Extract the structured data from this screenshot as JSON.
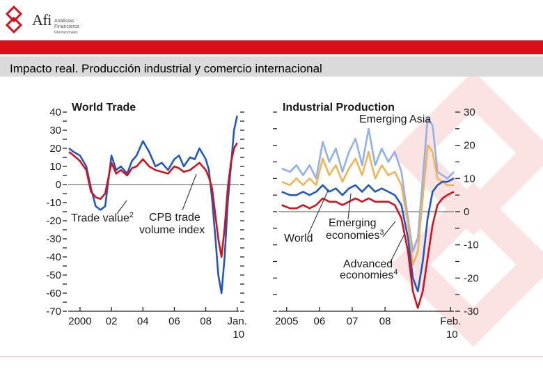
{
  "header": {
    "logo_text": "Afi",
    "logo_sub1": "Analistas",
    "logo_sub2": "Financieros",
    "logo_sub3": "Internacionales",
    "title": "Impacto real. Producción industrial y comercio internacional"
  },
  "colors": {
    "red": "#d8101a",
    "dark_blue": "#1f57c3",
    "light_blue": "#8fb0ec",
    "orange": "#f3b44f",
    "zero_line": "#8a8a8a"
  },
  "chart_data": [
    {
      "type": "line",
      "title": "World Trade",
      "ylim": [
        -70,
        40
      ],
      "yticks": [
        -70,
        -60,
        -50,
        -40,
        -30,
        -20,
        -10,
        0,
        10,
        20,
        30,
        40
      ],
      "x_range": [
        1999.25,
        2010.1
      ],
      "x_ticks": [
        {
          "x": 2000,
          "label": "2000"
        },
        {
          "x": 2002,
          "label": "02"
        },
        {
          "x": 2004,
          "label": "04"
        },
        {
          "x": 2006,
          "label": "06"
        },
        {
          "x": 2008,
          "label": "08"
        },
        {
          "x": 2010,
          "label": "Jan.",
          "label2": "10"
        }
      ],
      "series": [
        {
          "name": "Trade value",
          "footnote": "2",
          "x": [
            1999.3,
            1999.6,
            2000,
            2000.4,
            2000.7,
            2001,
            2001.3,
            2001.6,
            2002,
            2002.3,
            2002.6,
            2003,
            2003.3,
            2003.6,
            2004,
            2004.4,
            2004.8,
            2005.2,
            2005.6,
            2006,
            2006.3,
            2006.6,
            2007,
            2007.3,
            2007.6,
            2008,
            2008.2,
            2008.4,
            2008.6,
            2008.8,
            2009,
            2009.2,
            2009.4,
            2009.6,
            2009.8,
            2010
          ],
          "y": [
            20,
            18,
            16,
            10,
            -2,
            -12,
            -14,
            -12,
            16,
            8,
            10,
            6,
            13,
            16,
            24,
            18,
            10,
            12,
            8,
            14,
            16,
            10,
            15,
            14,
            20,
            14,
            8,
            -8,
            -28,
            -50,
            -60,
            -40,
            -10,
            10,
            30,
            38
          ]
        },
        {
          "name": "CPB trade volume index",
          "x": [
            1999.3,
            1999.6,
            2000,
            2000.4,
            2000.7,
            2001,
            2001.3,
            2001.6,
            2002,
            2002.3,
            2002.6,
            2003,
            2003.3,
            2003.6,
            2004,
            2004.4,
            2004.8,
            2005.2,
            2005.6,
            2006,
            2006.3,
            2006.6,
            2007,
            2007.3,
            2007.6,
            2008,
            2008.2,
            2008.4,
            2008.6,
            2008.8,
            2009,
            2009.2,
            2009.4,
            2009.6,
            2009.8,
            2010
          ],
          "y": [
            18,
            16,
            13,
            8,
            -4,
            -7,
            -8,
            -5,
            12,
            6,
            8,
            5,
            9,
            10,
            14,
            10,
            8,
            7,
            6,
            10,
            9,
            7,
            8,
            10,
            12,
            8,
            4,
            -2,
            -16,
            -30,
            -40,
            -24,
            -2,
            12,
            20,
            23
          ]
        }
      ],
      "annotations": [
        {
          "text": "Trade value",
          "sup": "2"
        },
        {
          "text": "CPB trade"
        },
        {
          "text": "volume index"
        }
      ]
    },
    {
      "type": "line",
      "title": "Industrial Production",
      "ylim": [
        -30,
        30
      ],
      "yticks": [
        -30,
        -20,
        -10,
        0,
        10,
        20,
        30
      ],
      "x_range": [
        2004.75,
        2010.1
      ],
      "x_ticks": [
        {
          "x": 2005,
          "label": "2005"
        },
        {
          "x": 2006,
          "label": "06"
        },
        {
          "x": 2007,
          "label": "07"
        },
        {
          "x": 2008,
          "label": "08"
        },
        {
          "x": 2010,
          "label": "Feb.",
          "label2": "10"
        }
      ],
      "series": [
        {
          "name": "Emerging Asia",
          "x": [
            2004.85,
            2005.1,
            2005.3,
            2005.5,
            2005.7,
            2005.9,
            2006.1,
            2006.3,
            2006.5,
            2006.7,
            2006.9,
            2007.1,
            2007.3,
            2007.5,
            2007.7,
            2007.9,
            2008.1,
            2008.3,
            2008.5,
            2008.7,
            2008.85,
            2009,
            2009.15,
            2009.3,
            2009.45,
            2009.6,
            2009.75,
            2009.9,
            2010.1
          ],
          "y": [
            13,
            12,
            14,
            11,
            14,
            10,
            21,
            15,
            19,
            12,
            18,
            22,
            14,
            25,
            14,
            19,
            15,
            18,
            12,
            -2,
            -12,
            -8,
            10,
            28,
            26,
            12,
            11,
            10,
            12
          ]
        },
        {
          "name": "Emerging economies",
          "footnote": "3",
          "x": [
            2004.85,
            2005.1,
            2005.3,
            2005.5,
            2005.7,
            2005.9,
            2006.1,
            2006.3,
            2006.5,
            2006.7,
            2006.9,
            2007.1,
            2007.3,
            2007.5,
            2007.7,
            2007.9,
            2008.1,
            2008.3,
            2008.5,
            2008.7,
            2008.85,
            2009,
            2009.15,
            2009.3,
            2009.45,
            2009.6,
            2009.75,
            2009.9,
            2010.1
          ],
          "y": [
            9,
            8,
            10,
            8,
            10,
            8,
            16,
            11,
            14,
            9,
            13,
            16,
            11,
            18,
            10,
            14,
            11,
            12,
            8,
            -4,
            -16,
            -12,
            4,
            20,
            18,
            10,
            9,
            8,
            8
          ]
        },
        {
          "name": "World",
          "x": [
            2004.85,
            2005.1,
            2005.3,
            2005.5,
            2005.7,
            2005.9,
            2006.1,
            2006.3,
            2006.5,
            2006.7,
            2006.9,
            2007.1,
            2007.3,
            2007.5,
            2007.7,
            2007.9,
            2008.1,
            2008.3,
            2008.5,
            2008.7,
            2008.85,
            2009,
            2009.15,
            2009.3,
            2009.45,
            2009.6,
            2009.75,
            2009.9,
            2010.1
          ],
          "y": [
            6,
            5,
            5,
            6,
            5,
            6,
            8,
            6,
            7,
            5,
            7,
            8,
            6,
            8,
            6,
            7,
            6,
            5,
            2,
            -8,
            -20,
            -24,
            -15,
            -2,
            6,
            8,
            9,
            9,
            10
          ]
        },
        {
          "name": "Advanced economies",
          "footnote": "4",
          "x": [
            2004.85,
            2005.1,
            2005.3,
            2005.5,
            2005.7,
            2005.9,
            2006.1,
            2006.3,
            2006.5,
            2006.7,
            2006.9,
            2007.1,
            2007.3,
            2007.5,
            2007.7,
            2007.9,
            2008.1,
            2008.3,
            2008.5,
            2008.7,
            2008.85,
            2009,
            2009.15,
            2009.3,
            2009.45,
            2009.6,
            2009.75,
            2009.9,
            2010.1
          ],
          "y": [
            2,
            1,
            1,
            2,
            1,
            2,
            4,
            3,
            3,
            2,
            3,
            4,
            3,
            4,
            3,
            3,
            3,
            2,
            -2,
            -12,
            -24,
            -29,
            -24,
            -14,
            -4,
            2,
            4,
            5,
            6
          ]
        }
      ],
      "annotations": [
        {
          "text": "Emerging Asia"
        },
        {
          "text": "Emerging"
        },
        {
          "text": "economies",
          "sup": "3"
        },
        {
          "text": "World"
        },
        {
          "text": "Advanced"
        },
        {
          "text": "economies",
          "sup": "4"
        }
      ]
    }
  ]
}
